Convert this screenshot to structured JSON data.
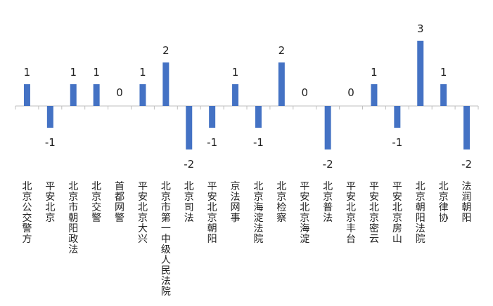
{
  "chart_data": {
    "type": "bar",
    "title": "",
    "xlabel": "",
    "ylabel": "",
    "ylim": [
      -2,
      3
    ],
    "grid": false,
    "legend": "none",
    "bar_color": "#4472C4",
    "axis_color": "#bfbfbf",
    "categories": [
      "北京公交警方",
      "平安北京",
      "北京市朝阳政法",
      "北京交警",
      "首都网警",
      "平安北京大兴",
      "北京市第一中级人民法院",
      "北京司法",
      "平安北京朝阳",
      "京法网事",
      "北京海淀法院",
      "北京检察",
      "平安北京海淀",
      "北京普法",
      "平安北京丰台",
      "平安北京密云",
      "平安北京房山",
      "北京朝阳法院",
      "北京律协",
      "法润朝阳"
    ],
    "values": [
      1,
      -1,
      1,
      1,
      0,
      1,
      2,
      -2,
      -1,
      1,
      -1,
      2,
      0,
      -2,
      0,
      1,
      -1,
      3,
      1,
      -2
    ]
  }
}
